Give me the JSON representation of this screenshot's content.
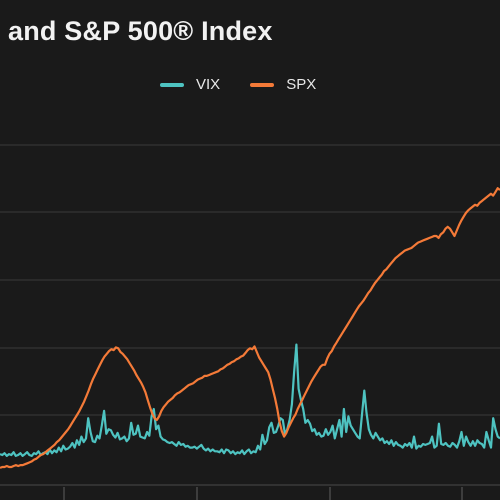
{
  "chart_data": {
    "type": "line",
    "title": "and S&P 500® Index",
    "grid": true,
    "legend_placement": "top-center",
    "series": [
      {
        "name": "VIX",
        "color": "#4ec3c1",
        "values": [
          21,
          20,
          22,
          19,
          21,
          20,
          23,
          19,
          20,
          22,
          19,
          21,
          23,
          20,
          19,
          22,
          21,
          24,
          20,
          22,
          23,
          21,
          26,
          22,
          25,
          23,
          28,
          24,
          30,
          26,
          27,
          29,
          33,
          28,
          36,
          31,
          40,
          34,
          38,
          60,
          45,
          35,
          34,
          41,
          38,
          52,
          68,
          43,
          48,
          47,
          42,
          39,
          44,
          37,
          38,
          40,
          35,
          38,
          55,
          42,
          43,
          52,
          40,
          39,
          38,
          45,
          41,
          62,
          70,
          48,
          52,
          40,
          37,
          36,
          34,
          33,
          34,
          32,
          30,
          34,
          31,
          32,
          29,
          30,
          28,
          28,
          29,
          27,
          29,
          31,
          27,
          25,
          27,
          24,
          26,
          24,
          24,
          23,
          26,
          22,
          26,
          25,
          22,
          24,
          21,
          23,
          22,
          25,
          21,
          24,
          26,
          22,
          24,
          23,
          30,
          26,
          42,
          32,
          36,
          50,
          55,
          44,
          45,
          52,
          60,
          58,
          42,
          48,
          58,
          75,
          110,
          140,
          92,
          80,
          70,
          55,
          58,
          54,
          46,
          48,
          42,
          44,
          40,
          41,
          48,
          42,
          45,
          52,
          38,
          48,
          58,
          40,
          70,
          45,
          62,
          52,
          48,
          44,
          40,
          38,
          64,
          90,
          66,
          48,
          42,
          38,
          44,
          40,
          36,
          38,
          33,
          35,
          32,
          36,
          30,
          34,
          31,
          30,
          28,
          32,
          30,
          33,
          28,
          40,
          27,
          30,
          29,
          32,
          31,
          32,
          33,
          40,
          28,
          30,
          54,
          32,
          31,
          33,
          30,
          29,
          33,
          31,
          28,
          35,
          45,
          30,
          40,
          34,
          30,
          35,
          30,
          36,
          33,
          32,
          28,
          45,
          36,
          28,
          60,
          48,
          40,
          38
        ]
      },
      {
        "name": "SPX",
        "color": "#f47a38",
        "values": [
          6,
          7,
          7,
          8,
          7,
          7,
          8,
          9,
          8,
          9,
          9,
          10,
          11,
          12,
          13,
          15,
          16,
          18,
          20,
          21,
          23,
          25,
          27,
          29,
          31,
          34,
          36,
          39,
          42,
          45,
          48,
          52,
          56,
          60,
          64,
          68,
          73,
          78,
          84,
          90,
          97,
          103,
          108,
          113,
          118,
          123,
          127,
          130,
          133,
          135,
          134,
          137,
          136,
          132,
          130,
          127,
          124,
          120,
          116,
          112,
          107,
          103,
          99,
          94,
          88,
          80,
          72,
          65,
          60,
          58,
          62,
          68,
          72,
          75,
          78,
          80,
          82,
          85,
          87,
          88,
          90,
          92,
          94,
          96,
          97,
          98,
          100,
          102,
          103,
          104,
          106,
          106,
          107,
          108,
          109,
          110,
          111,
          113,
          114,
          116,
          118,
          119,
          121,
          122,
          124,
          125,
          127,
          128,
          131,
          134,
          136,
          135,
          138,
          132,
          126,
          122,
          118,
          114,
          110,
          102,
          92,
          82,
          70,
          56,
          46,
          40,
          44,
          50,
          55,
          60,
          64,
          70,
          75,
          80,
          85,
          90,
          95,
          100,
          104,
          108,
          112,
          116,
          118,
          118,
          125,
          130,
          133,
          138,
          142,
          146,
          150,
          154,
          158,
          162,
          166,
          170,
          174,
          178,
          182,
          185,
          188,
          192,
          196,
          199,
          203,
          207,
          210,
          213,
          216,
          220,
          222,
          225,
          228,
          231,
          234,
          236,
          238,
          240,
          242,
          243,
          244,
          245,
          247,
          249,
          251,
          252,
          253,
          254,
          255,
          256,
          257,
          258,
          258,
          256,
          260,
          262,
          266,
          268,
          266,
          262,
          258,
          264,
          270,
          275,
          279,
          283,
          286,
          288,
          290,
          292,
          291,
          294,
          296,
          298,
          300,
          302,
          304,
          302,
          306,
          310,
          308
        ]
      }
    ]
  }
}
